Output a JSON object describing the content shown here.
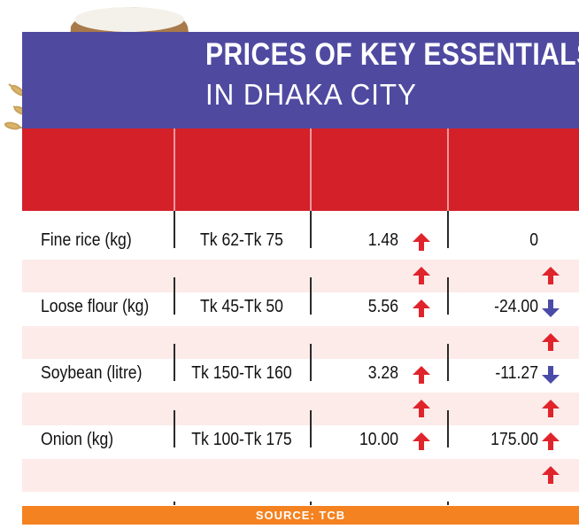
{
  "header": {
    "title_line1": "PRICES OF KEY ESSENTIALS",
    "title_line2": "IN DHAKA CITY",
    "columns": [
      "",
      "",
      "",
      ""
    ]
  },
  "chart_data": {
    "type": "table",
    "title": "PRICES OF KEY ESSENTIALS IN DHAKA CITY",
    "rows": [
      {
        "item": "Fine rice (kg)",
        "price_range": "Tk 62-Tk 75",
        "change1": "1.48",
        "change1_dir": "up",
        "change2": "0",
        "change2_dir": "none",
        "sub_change1_dir": "up",
        "sub_change2_dir": "up"
      },
      {
        "item": "Loose flour (kg)",
        "price_range": "Tk 45-Tk 50",
        "change1": "5.56",
        "change1_dir": "up",
        "change2": "-24.00",
        "change2_dir": "down",
        "sub_change1_dir": "none",
        "sub_change2_dir": "up"
      },
      {
        "item": "Soybean (litre)",
        "price_range": "Tk 150-Tk 160",
        "change1": "3.28",
        "change1_dir": "up",
        "change2": "-11.27",
        "change2_dir": "down",
        "sub_change1_dir": "up",
        "sub_change2_dir": "up"
      },
      {
        "item": "Onion (kg)",
        "price_range": "Tk 100-Tk 175",
        "change1": "10.00",
        "change1_dir": "up",
        "change2": "175.00",
        "change2_dir": "up",
        "sub_change1_dir": "none",
        "sub_change2_dir": "up"
      }
    ]
  },
  "colors": {
    "up_arrow": "#e0242b",
    "down_arrow": "#4a4ba8",
    "title_band": "#4f4aa0",
    "header_band": "#d42029",
    "source_band": "#f58220",
    "alt_row": "#fcebe9"
  },
  "illustration": {
    "icons": [
      "rice-sack-icon",
      "flour-sack-icon",
      "oil-bottle-icon",
      "onion-icon",
      "egg-icon",
      "potato-icon",
      "wheat-icon",
      "lentil-bowl-icon"
    ]
  },
  "footer": {
    "source": "SOURCE: TCB"
  }
}
